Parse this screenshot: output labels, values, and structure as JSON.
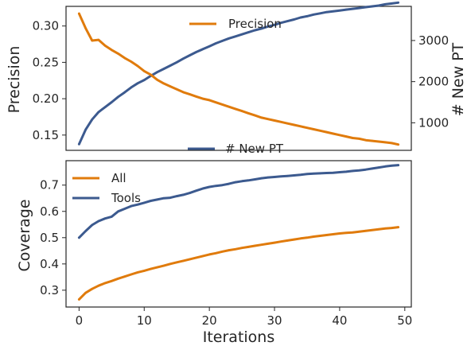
{
  "colors": {
    "orange": "#e07b0c",
    "blue": "#3c5a8f"
  },
  "chart_data": [
    {
      "type": "line",
      "ylabel": "Precision",
      "y2label": "# New PT",
      "xlim": [
        -2,
        51
      ],
      "ylim": [
        0.129,
        0.327
      ],
      "y2lim": [
        330,
        3830
      ],
      "yticks": [
        "0.15",
        "0.20",
        "0.25",
        "0.30"
      ],
      "y2ticks": [
        "1000",
        "2000",
        "3000"
      ],
      "grid": false,
      "series": [
        {
          "name": "Precision",
          "axis": "left",
          "color": "orange",
          "legend": "top-center",
          "x": [
            0,
            1,
            2,
            3,
            4,
            5,
            6,
            7,
            8,
            9,
            10,
            11,
            12,
            13,
            14,
            15,
            16,
            17,
            18,
            19,
            20,
            21,
            22,
            23,
            24,
            25,
            26,
            27,
            28,
            29,
            30,
            31,
            32,
            33,
            34,
            35,
            36,
            37,
            38,
            39,
            40,
            41,
            42,
            43,
            44,
            45,
            46,
            47,
            48,
            49
          ],
          "y": [
            0.317,
            0.297,
            0.28,
            0.281,
            0.273,
            0.267,
            0.262,
            0.256,
            0.251,
            0.245,
            0.238,
            0.233,
            0.226,
            0.221,
            0.217,
            0.213,
            0.209,
            0.206,
            0.203,
            0.2,
            0.198,
            0.195,
            0.192,
            0.189,
            0.186,
            0.183,
            0.18,
            0.177,
            0.174,
            0.172,
            0.17,
            0.168,
            0.166,
            0.164,
            0.162,
            0.16,
            0.158,
            0.156,
            0.154,
            0.152,
            0.15,
            0.148,
            0.146,
            0.145,
            0.143,
            0.142,
            0.141,
            0.14,
            0.139,
            0.137
          ]
        },
        {
          "name": "# New PT",
          "axis": "right",
          "color": "blue",
          "legend": "bottom-center",
          "x": [
            0,
            1,
            2,
            3,
            4,
            5,
            6,
            7,
            8,
            9,
            10,
            11,
            12,
            13,
            14,
            15,
            16,
            17,
            18,
            19,
            20,
            21,
            22,
            23,
            24,
            25,
            26,
            27,
            28,
            29,
            30,
            31,
            32,
            33,
            34,
            35,
            36,
            37,
            38,
            39,
            40,
            41,
            42,
            43,
            44,
            45,
            46,
            47,
            48,
            49
          ],
          "y": [
            480,
            830,
            1080,
            1260,
            1380,
            1500,
            1630,
            1740,
            1860,
            1960,
            2040,
            2140,
            2230,
            2310,
            2390,
            2470,
            2560,
            2640,
            2720,
            2790,
            2860,
            2930,
            2990,
            3050,
            3100,
            3150,
            3200,
            3250,
            3290,
            3340,
            3380,
            3430,
            3470,
            3510,
            3560,
            3590,
            3630,
            3660,
            3690,
            3710,
            3730,
            3750,
            3770,
            3790,
            3810,
            3830,
            3850,
            3880,
            3900,
            3920
          ]
        }
      ]
    },
    {
      "type": "line",
      "xlabel": "Iterations",
      "ylabel": "Coverage",
      "xlim": [
        -2,
        51
      ],
      "ylim": [
        0.236,
        0.793
      ],
      "xticks": [
        "0",
        "10",
        "20",
        "30",
        "40",
        "50"
      ],
      "yticks": [
        "0.3",
        "0.4",
        "0.5",
        "0.6",
        "0.7"
      ],
      "grid": false,
      "legend": "top-left",
      "series": [
        {
          "name": "All",
          "color": "orange",
          "x": [
            0,
            1,
            2,
            3,
            4,
            5,
            6,
            7,
            8,
            9,
            10,
            11,
            12,
            13,
            14,
            15,
            16,
            17,
            18,
            19,
            20,
            21,
            22,
            23,
            24,
            25,
            26,
            27,
            28,
            29,
            30,
            31,
            32,
            33,
            34,
            35,
            36,
            37,
            38,
            39,
            40,
            41,
            42,
            43,
            44,
            45,
            46,
            47,
            48,
            49
          ],
          "y": [
            0.265,
            0.29,
            0.305,
            0.317,
            0.327,
            0.335,
            0.344,
            0.352,
            0.36,
            0.368,
            0.374,
            0.381,
            0.387,
            0.393,
            0.4,
            0.406,
            0.412,
            0.418,
            0.424,
            0.43,
            0.436,
            0.441,
            0.447,
            0.452,
            0.456,
            0.461,
            0.465,
            0.469,
            0.473,
            0.477,
            0.481,
            0.485,
            0.489,
            0.493,
            0.497,
            0.5,
            0.504,
            0.507,
            0.51,
            0.513,
            0.516,
            0.518,
            0.52,
            0.523,
            0.526,
            0.529,
            0.532,
            0.535,
            0.537,
            0.54
          ]
        },
        {
          "name": "Tools",
          "color": "blue",
          "x": [
            0,
            1,
            2,
            3,
            4,
            5,
            6,
            7,
            8,
            9,
            10,
            11,
            12,
            13,
            14,
            15,
            16,
            17,
            18,
            19,
            20,
            21,
            22,
            23,
            24,
            25,
            26,
            27,
            28,
            29,
            30,
            31,
            32,
            33,
            34,
            35,
            36,
            37,
            38,
            39,
            40,
            41,
            42,
            43,
            44,
            45,
            46,
            47,
            48,
            49
          ],
          "y": [
            0.5,
            0.525,
            0.548,
            0.563,
            0.573,
            0.58,
            0.6,
            0.61,
            0.62,
            0.626,
            0.633,
            0.64,
            0.645,
            0.65,
            0.652,
            0.658,
            0.663,
            0.67,
            0.679,
            0.687,
            0.693,
            0.697,
            0.7,
            0.705,
            0.711,
            0.715,
            0.718,
            0.722,
            0.726,
            0.729,
            0.731,
            0.733,
            0.735,
            0.737,
            0.739,
            0.742,
            0.744,
            0.745,
            0.746,
            0.747,
            0.749,
            0.751,
            0.754,
            0.756,
            0.759,
            0.763,
            0.767,
            0.771,
            0.774,
            0.776
          ]
        }
      ]
    }
  ]
}
